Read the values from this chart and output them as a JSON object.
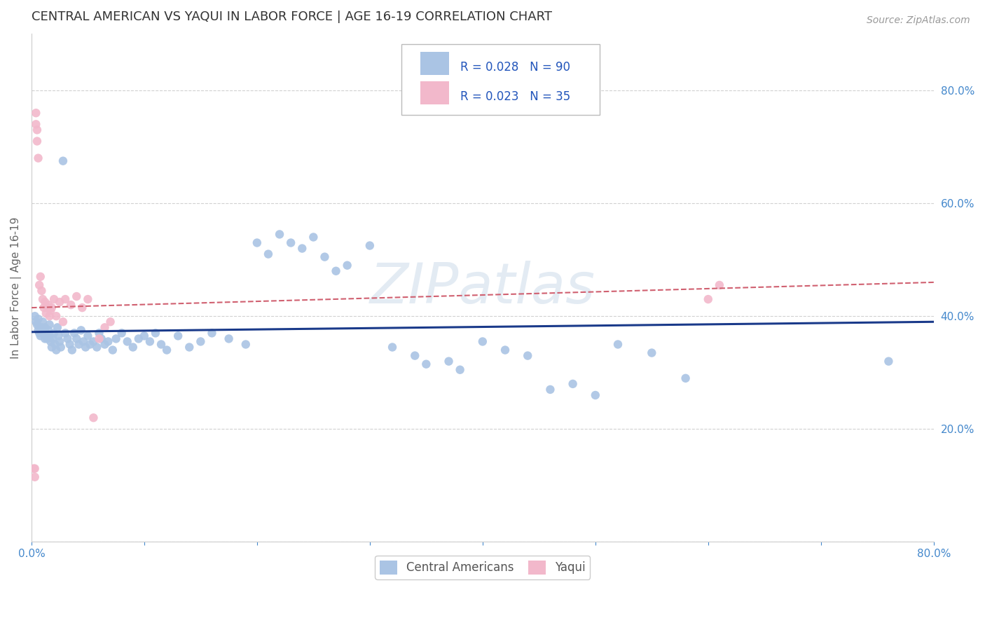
{
  "title": "CENTRAL AMERICAN VS YAQUI IN LABOR FORCE | AGE 16-19 CORRELATION CHART",
  "source": "Source: ZipAtlas.com",
  "ylabel": "In Labor Force | Age 16-19",
  "xlim": [
    0.0,
    0.8
  ],
  "ylim": [
    0.0,
    0.9
  ],
  "xticks": [
    0.0,
    0.1,
    0.2,
    0.3,
    0.4,
    0.5,
    0.6,
    0.7,
    0.8
  ],
  "yticks": [
    0.0,
    0.2,
    0.4,
    0.6,
    0.8
  ],
  "xticklabels": [
    "0.0%",
    "",
    "",
    "",
    "",
    "",
    "",
    "",
    "80.0%"
  ],
  "yticklabels": [
    "",
    "20.0%",
    "40.0%",
    "60.0%",
    "80.0%"
  ],
  "blue_R": 0.028,
  "blue_N": 90,
  "pink_R": 0.023,
  "pink_N": 35,
  "blue_color": "#aac4e4",
  "pink_color": "#f2b8cb",
  "blue_line_color": "#1a3a8a",
  "pink_line_color": "#d06070",
  "blue_x": [
    0.003,
    0.004,
    0.005,
    0.006,
    0.006,
    0.007,
    0.007,
    0.008,
    0.009,
    0.01,
    0.01,
    0.011,
    0.012,
    0.012,
    0.013,
    0.014,
    0.015,
    0.016,
    0.016,
    0.017,
    0.018,
    0.019,
    0.02,
    0.021,
    0.022,
    0.023,
    0.024,
    0.025,
    0.026,
    0.028,
    0.03,
    0.032,
    0.034,
    0.036,
    0.038,
    0.04,
    0.042,
    0.044,
    0.046,
    0.048,
    0.05,
    0.052,
    0.055,
    0.058,
    0.06,
    0.062,
    0.065,
    0.068,
    0.072,
    0.075,
    0.08,
    0.085,
    0.09,
    0.095,
    0.1,
    0.105,
    0.11,
    0.115,
    0.12,
    0.13,
    0.14,
    0.15,
    0.16,
    0.175,
    0.19,
    0.2,
    0.21,
    0.22,
    0.23,
    0.24,
    0.25,
    0.26,
    0.27,
    0.28,
    0.3,
    0.32,
    0.34,
    0.35,
    0.37,
    0.38,
    0.4,
    0.42,
    0.44,
    0.46,
    0.48,
    0.5,
    0.52,
    0.55,
    0.58,
    0.76
  ],
  "blue_y": [
    0.4,
    0.39,
    0.385,
    0.395,
    0.375,
    0.38,
    0.37,
    0.365,
    0.38,
    0.39,
    0.375,
    0.37,
    0.36,
    0.38,
    0.37,
    0.36,
    0.375,
    0.365,
    0.385,
    0.355,
    0.345,
    0.36,
    0.37,
    0.35,
    0.34,
    0.38,
    0.365,
    0.355,
    0.345,
    0.675,
    0.37,
    0.36,
    0.35,
    0.34,
    0.37,
    0.36,
    0.35,
    0.375,
    0.355,
    0.345,
    0.365,
    0.35,
    0.355,
    0.345,
    0.37,
    0.36,
    0.35,
    0.355,
    0.34,
    0.36,
    0.37,
    0.355,
    0.345,
    0.36,
    0.365,
    0.355,
    0.37,
    0.35,
    0.34,
    0.365,
    0.345,
    0.355,
    0.37,
    0.36,
    0.35,
    0.53,
    0.51,
    0.545,
    0.53,
    0.52,
    0.54,
    0.505,
    0.48,
    0.49,
    0.525,
    0.345,
    0.33,
    0.315,
    0.32,
    0.305,
    0.355,
    0.34,
    0.33,
    0.27,
    0.28,
    0.26,
    0.35,
    0.335,
    0.29,
    0.32
  ],
  "pink_x": [
    0.002,
    0.003,
    0.003,
    0.004,
    0.004,
    0.005,
    0.005,
    0.006,
    0.007,
    0.008,
    0.009,
    0.01,
    0.011,
    0.012,
    0.013,
    0.014,
    0.015,
    0.016,
    0.017,
    0.018,
    0.02,
    0.022,
    0.025,
    0.028,
    0.03,
    0.035,
    0.04,
    0.045,
    0.05,
    0.055,
    0.06,
    0.065,
    0.07,
    0.6,
    0.61
  ],
  "pink_y": [
    0.13,
    0.13,
    0.115,
    0.74,
    0.76,
    0.73,
    0.71,
    0.68,
    0.455,
    0.47,
    0.445,
    0.43,
    0.415,
    0.425,
    0.405,
    0.415,
    0.42,
    0.4,
    0.41,
    0.415,
    0.43,
    0.4,
    0.425,
    0.39,
    0.43,
    0.42,
    0.435,
    0.415,
    0.43,
    0.22,
    0.36,
    0.38,
    0.39,
    0.43,
    0.455
  ],
  "blue_line_x": [
    0.0,
    0.8
  ],
  "blue_line_y": [
    0.372,
    0.39
  ],
  "pink_line_x": [
    0.0,
    0.8
  ],
  "pink_line_y": [
    0.415,
    0.46
  ],
  "background_color": "#ffffff",
  "grid_color": "#cccccc",
  "tick_color": "#4488cc",
  "marker_size": 80
}
